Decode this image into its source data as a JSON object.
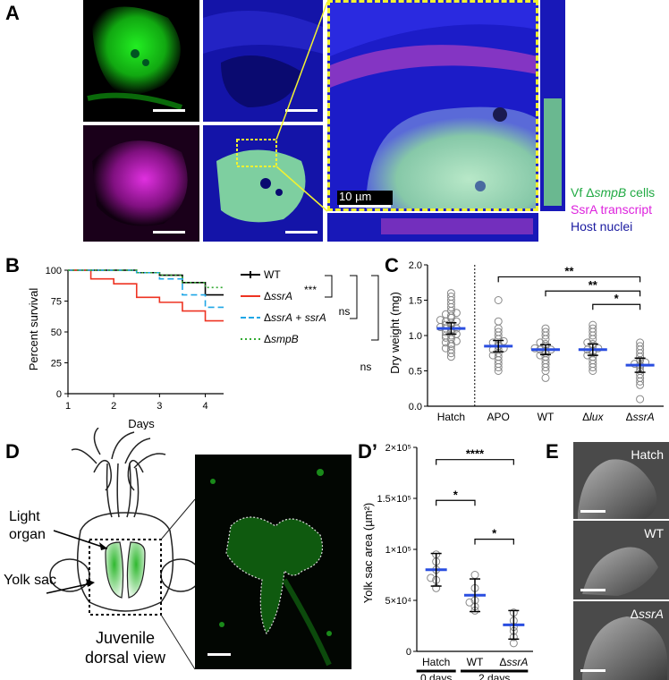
{
  "panel_labels": {
    "A": "A",
    "B": "B",
    "C": "C",
    "D": "D",
    "Dp": "D’",
    "E": "E"
  },
  "panel_a": {
    "scale_label": "10 µm",
    "legend": [
      {
        "prefix": "Vf ",
        "delta": "Δ",
        "gene": "smpB",
        "suffix": " cells",
        "color": "#22aa44"
      },
      {
        "text": "SsrA transcript",
        "color": "#dd22dd"
      },
      {
        "text": "Host nuclei",
        "color": "#1a1aa0"
      }
    ],
    "colors": {
      "green": "#19d419",
      "magenta": "#d020d0",
      "blue": "#1a1ad6",
      "zoom_box": "#f2f230"
    }
  },
  "chart_data": [
    {
      "id": "B",
      "type": "line",
      "xlabel": "Days",
      "ylabel": "Percent survival",
      "xlim": [
        1,
        4.4
      ],
      "ylim": [
        0,
        100
      ],
      "xticks": [
        1,
        2,
        3,
        4
      ],
      "yticks": [
        0,
        25,
        50,
        75,
        100
      ],
      "series": [
        {
          "name": "WT",
          "color": "#000000",
          "dash": "",
          "points": [
            [
              1,
              100
            ],
            [
              2,
              100
            ],
            [
              2.5,
              98
            ],
            [
              3,
              96
            ],
            [
              3.5,
              90
            ],
            [
              4,
              80
            ],
            [
              4.4,
              80
            ]
          ]
        },
        {
          "name": "ΔssrA",
          "color": "#ee3322",
          "dash": "",
          "points": [
            [
              1,
              100
            ],
            [
              1.5,
              93
            ],
            [
              2,
              89
            ],
            [
              2.5,
              78
            ],
            [
              3,
              74
            ],
            [
              3.5,
              67
            ],
            [
              4,
              59
            ],
            [
              4.4,
              59
            ]
          ]
        },
        {
          "name": "ΔssrA + ssrA",
          "color": "#1ea6e6",
          "dash": "7,4",
          "points": [
            [
              1,
              100
            ],
            [
              2,
              100
            ],
            [
              2.5,
              98
            ],
            [
              3,
              93
            ],
            [
              3.5,
              80
            ],
            [
              4,
              70
            ],
            [
              4.4,
              70
            ]
          ]
        },
        {
          "name": "ΔsmpB",
          "color": "#33aa33",
          "dash": "2,3",
          "points": [
            [
              1,
              100
            ],
            [
              2,
              100
            ],
            [
              2.5,
              98
            ],
            [
              3,
              96
            ],
            [
              3.5,
              90
            ],
            [
              4,
              86
            ],
            [
              4.4,
              86
            ]
          ]
        }
      ],
      "legend": [
        {
          "prefix": "",
          "italic": "",
          "suffix": "WT"
        },
        {
          "prefix": "Δ",
          "italic": "ssrA",
          "suffix": ""
        },
        {
          "prefix": "Δ",
          "italic": "ssrA",
          "suffix": " + ",
          "italic2": "ssrA"
        },
        {
          "prefix": "Δ",
          "italic": "smpB",
          "suffix": ""
        }
      ],
      "significance": [
        "***",
        "ns",
        "ns"
      ]
    },
    {
      "id": "C",
      "type": "scatter",
      "ylabel": "Dry weight  (mg)",
      "ylim": [
        0,
        2.0
      ],
      "yticks": [
        0.0,
        0.5,
        1.0,
        1.5,
        2.0
      ],
      "categories": [
        {
          "prefix": "",
          "italic": "Hatch"
        },
        {
          "prefix": "",
          "italic": "APO"
        },
        {
          "prefix": "",
          "italic": "WT"
        },
        {
          "prefix": "Δ",
          "italic": "lux"
        },
        {
          "prefix": "Δ",
          "italic": "ssrA"
        }
      ],
      "italic_flags": [
        false,
        false,
        false,
        true,
        true
      ],
      "means": [
        1.1,
        0.85,
        0.8,
        0.8,
        0.58
      ],
      "errors": [
        0.08,
        0.08,
        0.07,
        0.08,
        0.1
      ],
      "points": [
        [
          0.7,
          0.75,
          0.8,
          0.82,
          0.85,
          0.88,
          0.9,
          0.92,
          0.95,
          0.97,
          1.0,
          1.0,
          1.02,
          1.05,
          1.05,
          1.08,
          1.1,
          1.1,
          1.12,
          1.15,
          1.15,
          1.18,
          1.2,
          1.2,
          1.22,
          1.25,
          1.28,
          1.3,
          1.32,
          1.35,
          1.4,
          1.45,
          1.5,
          1.55,
          1.6
        ],
        [
          0.5,
          0.55,
          0.6,
          0.65,
          0.7,
          0.72,
          0.75,
          0.8,
          0.8,
          0.82,
          0.85,
          0.88,
          0.9,
          0.92,
          0.95,
          1.0,
          1.05,
          1.1,
          1.2,
          1.5
        ],
        [
          0.4,
          0.5,
          0.55,
          0.6,
          0.65,
          0.7,
          0.72,
          0.75,
          0.78,
          0.8,
          0.8,
          0.82,
          0.85,
          0.88,
          0.9,
          0.95,
          1.0,
          1.05,
          1.1
        ],
        [
          0.5,
          0.55,
          0.6,
          0.65,
          0.7,
          0.72,
          0.75,
          0.78,
          0.8,
          0.82,
          0.85,
          0.88,
          0.9,
          0.95,
          1.0,
          1.05,
          1.1,
          1.15
        ],
        [
          0.1,
          0.3,
          0.35,
          0.4,
          0.45,
          0.5,
          0.55,
          0.58,
          0.6,
          0.62,
          0.65,
          0.7,
          0.75,
          0.8,
          0.85,
          0.9
        ]
      ],
      "significance": [
        "**",
        "**",
        "*"
      ]
    },
    {
      "id": "Dp",
      "type": "scatter",
      "ylabel": "Yolk sac area (µm²)",
      "ylim": [
        0,
        200000
      ],
      "yticks": [
        {
          "v": 0,
          "label": "0"
        },
        {
          "v": 50000,
          "label": "5×10⁴"
        },
        {
          "v": 100000,
          "label": "1×10⁵"
        },
        {
          "v": 150000,
          "label": "1.5×10⁵"
        },
        {
          "v": 200000,
          "label": "2×10⁵"
        }
      ],
      "categories": [
        {
          "prefix": "",
          "italic": "Hatch"
        },
        {
          "prefix": "",
          "italic": "WT"
        },
        {
          "prefix": "Δ",
          "italic": "ssrA"
        }
      ],
      "italic_flags": [
        false,
        false,
        true
      ],
      "means": [
        80000,
        55000,
        26000
      ],
      "errors": [
        16000,
        16000,
        14000
      ],
      "points": [
        [
          62000,
          70000,
          80000,
          88000,
          95000,
          72000
        ],
        [
          40000,
          44000,
          50000,
          62000,
          75000,
          48000
        ],
        [
          8000,
          14000,
          20000,
          30000,
          38000,
          24000
        ]
      ],
      "groups": [
        "0 days",
        "2 days"
      ],
      "significance": [
        "****",
        "*",
        "*"
      ]
    }
  ],
  "panel_d": {
    "labels": {
      "light_organ": "Light organ",
      "yolk_sac": "Yolk sac",
      "caption_line1": "Juvenile",
      "caption_line2": "dorsal view"
    }
  },
  "panel_e": {
    "labels": [
      {
        "prefix": "",
        "italic": "Hatch"
      },
      {
        "prefix": "",
        "italic": "WT"
      },
      {
        "prefix": "Δ",
        "italic": "ssrA"
      }
    ]
  }
}
